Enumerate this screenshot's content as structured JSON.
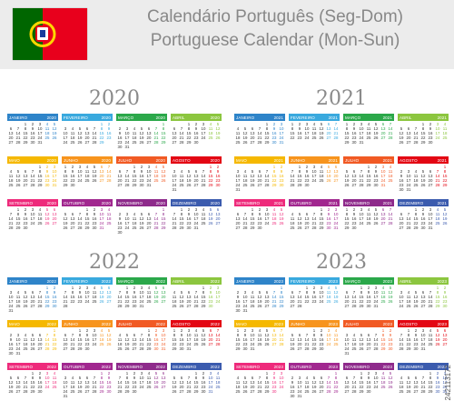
{
  "header": {
    "title_pt": "Calendário Português (Seg-Dom)",
    "title_en": "Portuguese Calendar (Mon-Sun)",
    "flag_icon": "portugal-flag-icon",
    "flag_colors": {
      "green": "#006600",
      "red": "#e8001c",
      "yellow": "#ffd700"
    }
  },
  "month_colors": [
    "#2e84c9",
    "#39a9de",
    "#2ba84a",
    "#8cc63f",
    "#f5b800",
    "#f7941d",
    "#f15a24",
    "#e30613",
    "#ee2a7b",
    "#a1278f",
    "#8e2a8b",
    "#3b5bae"
  ],
  "months_pt": [
    "JANEIRO",
    "FEVEREIRO",
    "MARÇO",
    "ABRIL",
    "MAIO",
    "JUNHO",
    "JULHO",
    "AGOSTO",
    "SETEMBRO",
    "OUTUBRO",
    "NOVEMBRO",
    "DEZEMBRO"
  ],
  "years": [
    {
      "year": "2020"
    },
    {
      "year": "2021"
    },
    {
      "year": "2022"
    },
    {
      "year": "2023"
    }
  ],
  "watermark": "242113172"
}
